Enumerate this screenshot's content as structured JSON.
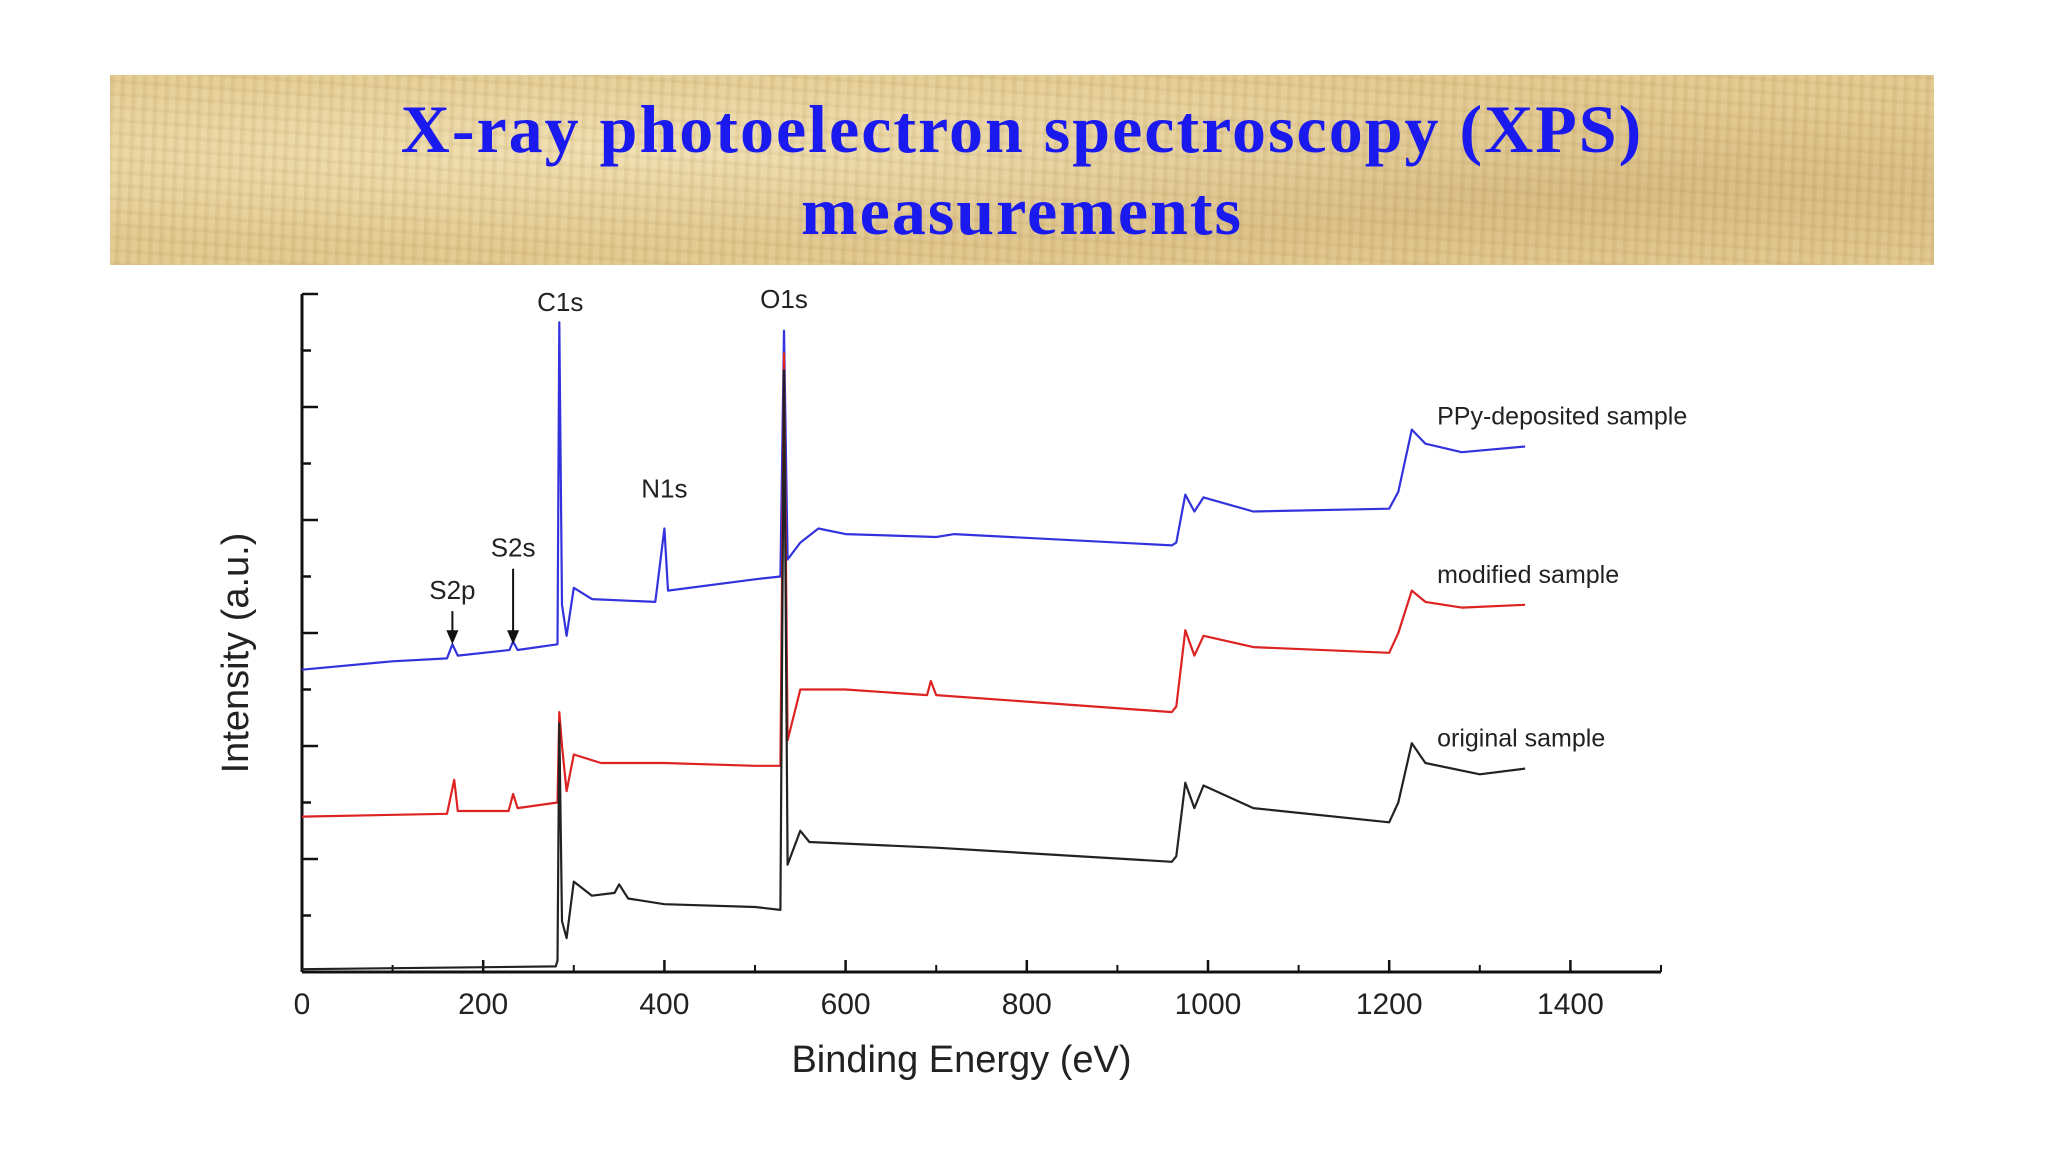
{
  "slide": {
    "title_line1": "X-ray photoelectron spectroscopy (XPS)",
    "title_line2": "measurements"
  },
  "chart_data": {
    "type": "line",
    "xlabel": "Binding Energy (eV)",
    "ylabel": "Intensity (a.u.)",
    "xlim": [
      0,
      1500
    ],
    "ylim": [
      0,
      12
    ],
    "xticks": [
      0,
      200,
      400,
      600,
      800,
      1000,
      1200,
      1400
    ],
    "grid": false,
    "series": [
      {
        "name": "PPy-deposited sample",
        "color": "#3333dd",
        "points": [
          [
            0,
            5.35
          ],
          [
            100,
            5.5
          ],
          [
            160,
            5.55
          ],
          [
            166,
            5.8
          ],
          [
            172,
            5.6
          ],
          [
            229,
            5.7
          ],
          [
            233,
            5.85
          ],
          [
            238,
            5.7
          ],
          [
            282,
            5.8
          ],
          [
            284,
            11.5
          ],
          [
            287,
            6.5
          ],
          [
            292,
            5.95
          ],
          [
            300,
            6.8
          ],
          [
            320,
            6.6
          ],
          [
            390,
            6.55
          ],
          [
            400,
            7.85
          ],
          [
            404,
            6.75
          ],
          [
            500,
            6.95
          ],
          [
            528,
            7.0
          ],
          [
            532,
            11.35
          ],
          [
            536,
            7.3
          ],
          [
            550,
            7.6
          ],
          [
            570,
            7.85
          ],
          [
            600,
            7.75
          ],
          [
            700,
            7.7
          ],
          [
            720,
            7.75
          ],
          [
            960,
            7.55
          ],
          [
            965,
            7.6
          ],
          [
            975,
            8.45
          ],
          [
            985,
            8.15
          ],
          [
            995,
            8.4
          ],
          [
            1050,
            8.15
          ],
          [
            1200,
            8.2
          ],
          [
            1210,
            8.5
          ],
          [
            1225,
            9.6
          ],
          [
            1240,
            9.35
          ],
          [
            1280,
            9.2
          ],
          [
            1350,
            9.3
          ]
        ]
      },
      {
        "name": "modified sample",
        "color": "#dd2222",
        "points": [
          [
            0,
            2.75
          ],
          [
            160,
            2.8
          ],
          [
            168,
            3.4
          ],
          [
            172,
            2.85
          ],
          [
            228,
            2.85
          ],
          [
            233,
            3.15
          ],
          [
            238,
            2.9
          ],
          [
            282,
            3.0
          ],
          [
            284,
            4.6
          ],
          [
            287,
            4.0
          ],
          [
            292,
            3.2
          ],
          [
            300,
            3.85
          ],
          [
            330,
            3.7
          ],
          [
            400,
            3.7
          ],
          [
            500,
            3.65
          ],
          [
            528,
            3.65
          ],
          [
            532,
            10.95
          ],
          [
            536,
            4.1
          ],
          [
            550,
            5.0
          ],
          [
            600,
            5.0
          ],
          [
            690,
            4.9
          ],
          [
            694,
            5.15
          ],
          [
            700,
            4.9
          ],
          [
            960,
            4.6
          ],
          [
            965,
            4.7
          ],
          [
            975,
            6.05
          ],
          [
            985,
            5.6
          ],
          [
            995,
            5.95
          ],
          [
            1050,
            5.75
          ],
          [
            1200,
            5.65
          ],
          [
            1210,
            6.0
          ],
          [
            1225,
            6.75
          ],
          [
            1240,
            6.55
          ],
          [
            1280,
            6.45
          ],
          [
            1350,
            6.5
          ]
        ]
      },
      {
        "name": "original sample",
        "color": "#222222",
        "points": [
          [
            0,
            0.05
          ],
          [
            280,
            0.1
          ],
          [
            282,
            0.2
          ],
          [
            284,
            4.4
          ],
          [
            287,
            0.9
          ],
          [
            292,
            0.6
          ],
          [
            300,
            1.6
          ],
          [
            320,
            1.35
          ],
          [
            345,
            1.4
          ],
          [
            350,
            1.55
          ],
          [
            360,
            1.3
          ],
          [
            400,
            1.2
          ],
          [
            500,
            1.15
          ],
          [
            528,
            1.1
          ],
          [
            532,
            10.65
          ],
          [
            536,
            1.9
          ],
          [
            550,
            2.5
          ],
          [
            560,
            2.3
          ],
          [
            700,
            2.2
          ],
          [
            960,
            1.95
          ],
          [
            965,
            2.05
          ],
          [
            975,
            3.35
          ],
          [
            985,
            2.9
          ],
          [
            995,
            3.3
          ],
          [
            1050,
            2.9
          ],
          [
            1200,
            2.65
          ],
          [
            1210,
            3.0
          ],
          [
            1225,
            4.05
          ],
          [
            1240,
            3.7
          ],
          [
            1300,
            3.5
          ],
          [
            1350,
            3.6
          ]
        ]
      }
    ],
    "annotations": [
      {
        "text": "C1s",
        "x": 285,
        "y": 11.7
      },
      {
        "text": "O1s",
        "x": 532,
        "y": 11.75
      },
      {
        "text": "N1s",
        "x": 400,
        "y": 8.4
      },
      {
        "text": "S2s",
        "x": 233,
        "y": 7.35,
        "arrow_to": [
          233,
          5.8
        ]
      },
      {
        "text": "S2p",
        "x": 166,
        "y": 6.6,
        "arrow_to": [
          166,
          5.8
        ]
      }
    ]
  }
}
